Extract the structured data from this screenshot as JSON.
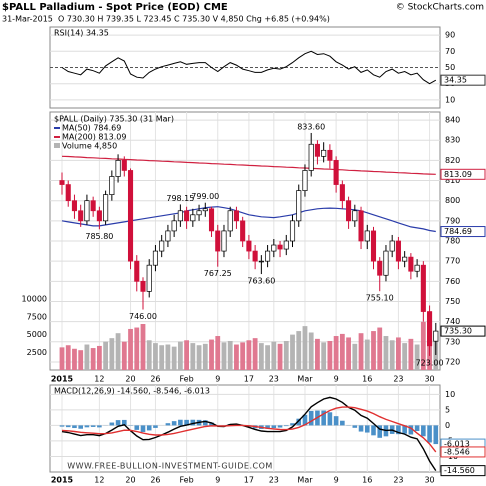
{
  "header": {
    "title": "$PALL Palladium - Spot Price (EOD) CME",
    "credit": "© StockCharts.com",
    "date": "31-Mar-2015",
    "quote": "O 730.30 H 739.35 L 723.45 C 735.30 V 4,850 Chg +6.85 (+0.94%)",
    "watermark": "WWW.FREE-BULLION-INVESTMENT-GUIDE.COM"
  },
  "chart_data": [
    {
      "type": "line",
      "title": "RSI(14) 34.35",
      "color": "#000000",
      "end_label": "34.35",
      "ylim": [
        0,
        100
      ],
      "yticks": [
        10,
        30,
        50,
        70,
        90
      ],
      "grid": true,
      "values": [
        50,
        45,
        43,
        41,
        48,
        46,
        43,
        52,
        57,
        62,
        58,
        42,
        38,
        37,
        44,
        48,
        51,
        53,
        55,
        57,
        54,
        55,
        56,
        56,
        50,
        45,
        51,
        56,
        53,
        48,
        46,
        44,
        44,
        47,
        49,
        48,
        51,
        56,
        62,
        67,
        70,
        66,
        67,
        64,
        57,
        53,
        48,
        51,
        44,
        47,
        41,
        38,
        45,
        48,
        43,
        45,
        41,
        43,
        35,
        30,
        34.35
      ]
    },
    {
      "type": "candlestick",
      "title": "$PALL (Daily) 735.30 (31 Mar)",
      "last_label": "735.30",
      "up_color": "#ffffff",
      "down_color": "#d0103a",
      "ylim": [
        716,
        844
      ],
      "yticks": [
        720,
        730,
        740,
        750,
        760,
        770,
        780,
        790,
        800,
        810,
        820,
        830,
        840
      ],
      "grid": true,
      "categories": [
        "2015",
        null,
        null,
        null,
        null,
        null,
        "12",
        null,
        null,
        null,
        null,
        "20",
        null,
        null,
        null,
        "26",
        null,
        null,
        null,
        null,
        "Feb",
        null,
        null,
        null,
        null,
        "9",
        null,
        null,
        null,
        null,
        "17",
        null,
        null,
        null,
        "23",
        null,
        null,
        null,
        null,
        "Mar",
        null,
        null,
        null,
        null,
        "9",
        null,
        null,
        null,
        null,
        "16",
        null,
        null,
        null,
        null,
        "23",
        null,
        null,
        null,
        null,
        "30",
        null
      ],
      "open": [
        810,
        808,
        800,
        795,
        790,
        800,
        795,
        790,
        803,
        812,
        820,
        815,
        770,
        760,
        755,
        768,
        775,
        780,
        785,
        790,
        795,
        790,
        793,
        795,
        796,
        785,
        775,
        785,
        795,
        790,
        780,
        775,
        770,
        770,
        775,
        778,
        776,
        780,
        790,
        805,
        815,
        828,
        822,
        825,
        820,
        808,
        800,
        790,
        795,
        780,
        785,
        770,
        763,
        775,
        780,
        770,
        772,
        765,
        768,
        745,
        730.3
      ],
      "high": [
        814,
        810,
        803,
        798,
        803,
        802,
        797,
        805,
        815,
        823,
        822,
        816,
        773,
        762,
        771,
        778,
        783,
        788,
        793,
        798.15,
        797,
        796,
        798,
        799,
        797,
        788,
        788,
        797,
        797,
        792,
        783,
        778,
        773,
        778,
        781,
        780,
        783,
        793,
        808,
        818,
        833.6,
        830,
        829,
        828,
        822,
        810,
        802,
        798,
        797,
        788,
        787,
        772,
        778,
        783,
        782,
        775,
        774,
        771,
        770,
        748,
        739.35
      ],
      "low": [
        803,
        797,
        791,
        787,
        788,
        792,
        785.8,
        788,
        800,
        809,
        812,
        766,
        755,
        746,
        752,
        765,
        772,
        777,
        782,
        787,
        786,
        787,
        790,
        792,
        782,
        767.25,
        772,
        782,
        786,
        777,
        771,
        766,
        763.6,
        767,
        772,
        772,
        773,
        777,
        787,
        802,
        812,
        818,
        819,
        816,
        804,
        796,
        786,
        787,
        776,
        776,
        766,
        755.1,
        760,
        772,
        766,
        767,
        761,
        762,
        740,
        723,
        723.45
      ],
      "close": [
        808,
        800,
        795,
        790,
        800,
        795,
        790,
        803,
        812,
        820,
        815,
        770,
        760,
        755,
        768,
        775,
        780,
        785,
        790,
        795,
        790,
        793,
        795,
        796,
        785,
        775,
        785,
        795,
        790,
        780,
        775,
        770,
        770,
        775,
        778,
        776,
        780,
        790,
        805,
        815,
        828,
        822,
        825,
        820,
        808,
        800,
        790,
        795,
        780,
        785,
        770,
        763,
        775,
        780,
        770,
        772,
        765,
        768,
        745,
        728,
        735.3
      ],
      "series": [
        {
          "name": "MA(50) 784.69",
          "color": "#2a3caa",
          "end_label": "784.69",
          "values": [
            790,
            789.5,
            789,
            788.5,
            788,
            787.5,
            787.5,
            788,
            788.5,
            789,
            789.5,
            790,
            790.5,
            791,
            791.5,
            792,
            792.5,
            793,
            793.5,
            794,
            795,
            795.5,
            796,
            796.5,
            796.8,
            797,
            796.5,
            796,
            795,
            794,
            793,
            792.5,
            792,
            791.8,
            791.6,
            792,
            792.5,
            793,
            794,
            795,
            795.5,
            796,
            796.2,
            796.3,
            796.2,
            796,
            795.8,
            795.5,
            795,
            794,
            793,
            792,
            791,
            790,
            789,
            788,
            787,
            786.5,
            786,
            785.2,
            784.69
          ]
        },
        {
          "name": "MA(200) 813.09",
          "color": "#d02040",
          "end_label": "813.09",
          "values": [
            822,
            821.9,
            821.7,
            821.6,
            821.4,
            821.3,
            821.1,
            821,
            820.8,
            820.7,
            820.5,
            820.4,
            820.2,
            820.1,
            819.9,
            819.8,
            819.6,
            819.5,
            819.3,
            819.2,
            819,
            818.9,
            818.7,
            818.6,
            818.4,
            818.3,
            818.1,
            818,
            817.8,
            817.7,
            817.5,
            817.4,
            817.2,
            817.1,
            816.9,
            816.8,
            816.6,
            816.5,
            816.3,
            816.2,
            816,
            815.9,
            815.7,
            815.6,
            815.4,
            815.3,
            815.1,
            815,
            814.8,
            814.7,
            814.5,
            814.4,
            814.2,
            814.1,
            813.9,
            813.8,
            813.6,
            813.5,
            813.3,
            813.2,
            813.09
          ]
        }
      ],
      "volume": {
        "name": "Volume 4,850",
        "up_color": "#b4b4b4",
        "down_color": "#e07890",
        "ylim": [
          0,
          13000
        ],
        "yticks": [
          2500,
          5000,
          7500,
          10000
        ],
        "values": [
          3200,
          3500,
          3000,
          2800,
          3600,
          3100,
          3400,
          4000,
          4500,
          5200,
          4000,
          5800,
          6000,
          6500,
          4200,
          3800,
          3500,
          3600,
          3300,
          4000,
          4200,
          3800,
          3500,
          3700,
          4300,
          4800,
          3900,
          4100,
          3600,
          3900,
          4200,
          4500,
          3800,
          3500,
          4000,
          3700,
          4100,
          5000,
          5500,
          6200,
          5300,
          4400,
          3900,
          4100,
          4800,
          5100,
          4600,
          3700,
          5200,
          4300,
          5500,
          6000,
          4800,
          4200,
          4600,
          3800,
          4400,
          3600,
          6800,
          6100,
          4850
        ]
      },
      "annotations": [
        {
          "value": 785.8,
          "label": "785.80"
        },
        {
          "value": 746,
          "label": "746.00"
        },
        {
          "value": 798.15,
          "label": "798.15"
        },
        {
          "value": 799,
          "label": "799.00"
        },
        {
          "value": 767.25,
          "label": "767.25"
        },
        {
          "value": 763.6,
          "label": "763.60"
        },
        {
          "value": 833.6,
          "label": "833.60"
        },
        {
          "value": 755.1,
          "label": "755.10"
        },
        {
          "value": 723,
          "label": "723.00"
        }
      ]
    },
    {
      "type": "macd",
      "title": "MACD(12,26,9) -14.560, -8.546, -6.013",
      "ylim": [
        -15,
        13
      ],
      "yticks": [
        10,
        5,
        0,
        -5,
        -10
      ],
      "grid": true,
      "categories": [
        "2015",
        null,
        null,
        null,
        null,
        null,
        "12",
        null,
        null,
        null,
        null,
        "20",
        null,
        null,
        null,
        "26",
        null,
        null,
        null,
        null,
        "Feb",
        null,
        null,
        null,
        null,
        "9",
        null,
        null,
        null,
        null,
        "17",
        null,
        null,
        null,
        "23",
        null,
        null,
        null,
        null,
        "Mar",
        null,
        null,
        null,
        null,
        "9",
        null,
        null,
        null,
        null,
        "16",
        null,
        null,
        null,
        null,
        "23",
        null,
        null,
        null,
        null,
        "30",
        null
      ],
      "series": [
        {
          "style": "bar",
          "color": "#4a90c8",
          "end_label": "-6.013",
          "values": [
            -0.4,
            -0.56,
            -0.85,
            -1.08,
            -0.62,
            -0.5,
            -0.64,
            0.05,
            0.92,
            1.7,
            1.76,
            -0.11,
            -1.45,
            -2.12,
            -1.62,
            -0.81,
            -0.01,
            0.71,
            1.37,
            1.82,
            1.78,
            1.82,
            1.78,
            1.66,
            0.93,
            -0.14,
            -0.19,
            0.41,
            0.41,
            0.01,
            -0.47,
            -0.94,
            -1.15,
            -1.08,
            -0.86,
            -0.69,
            -0.23,
            0.7,
            2.16,
            3.41,
            4.65,
            4.76,
            4.77,
            4.22,
            2.97,
            1.5,
            -0.08,
            -0.78,
            -1.98,
            -2.3,
            -3.2,
            -4,
            -3.52,
            -2.74,
            -2.83,
            -2.66,
            -2.93,
            -1.8,
            -3.5,
            -5.5,
            -6.013
          ]
        },
        {
          "style": "line",
          "color": "#000000",
          "end_label": "-14.560",
          "values": [
            -2,
            -2.3,
            -2.8,
            -3.3,
            -3,
            -3,
            -3.3,
            -2.6,
            -1.5,
            -0.3,
            0.2,
            -1.7,
            -3.4,
            -4.6,
            -4.5,
            -3.9,
            -3.1,
            -2.2,
            -1.2,
            -0.3,
            0.1,
            0.6,
            1,
            1.3,
            0.8,
            -0.3,
            -0.4,
            0.3,
            0.4,
            0,
            -0.6,
            -1.3,
            -1.8,
            -2,
            -2,
            -2,
            -1.6,
            -0.5,
            1.5,
            3.6,
            6,
            7.3,
            8.5,
            9,
            8.5,
            7.4,
            5.8,
            4.9,
            3.2,
            2.3,
            0.6,
            -1.2,
            -1.6,
            -1.5,
            -2.3,
            -2.8,
            -3.8,
            -4.3,
            -7.5,
            -11.5,
            -14.56
          ]
        },
        {
          "style": "line",
          "color": "#e03030",
          "end_label": "-8.546",
          "values": [
            -1.6,
            -1.74,
            -1.95,
            -2.22,
            -2.38,
            -2.5,
            -2.66,
            -2.65,
            -2.42,
            -2,
            -1.56,
            -1.59,
            -1.95,
            -2.48,
            -2.88,
            -3.09,
            -3.09,
            -2.91,
            -2.57,
            -2.12,
            -1.68,
            -1.22,
            -0.78,
            -0.36,
            -0.13,
            -0.16,
            -0.21,
            -0.11,
            -0.01,
            -0.01,
            -0.13,
            -0.36,
            -0.65,
            -0.92,
            -1.14,
            -1.31,
            -1.37,
            -1.2,
            -0.66,
            0.19,
            1.35,
            2.54,
            3.73,
            4.78,
            5.53,
            5.9,
            5.88,
            5.68,
            5.18,
            4.6,
            3.8,
            2.8,
            1.92,
            1.24,
            0.53,
            -0.14,
            -0.87,
            -2.5,
            -4,
            -6,
            -8.546
          ]
        }
      ]
    }
  ]
}
